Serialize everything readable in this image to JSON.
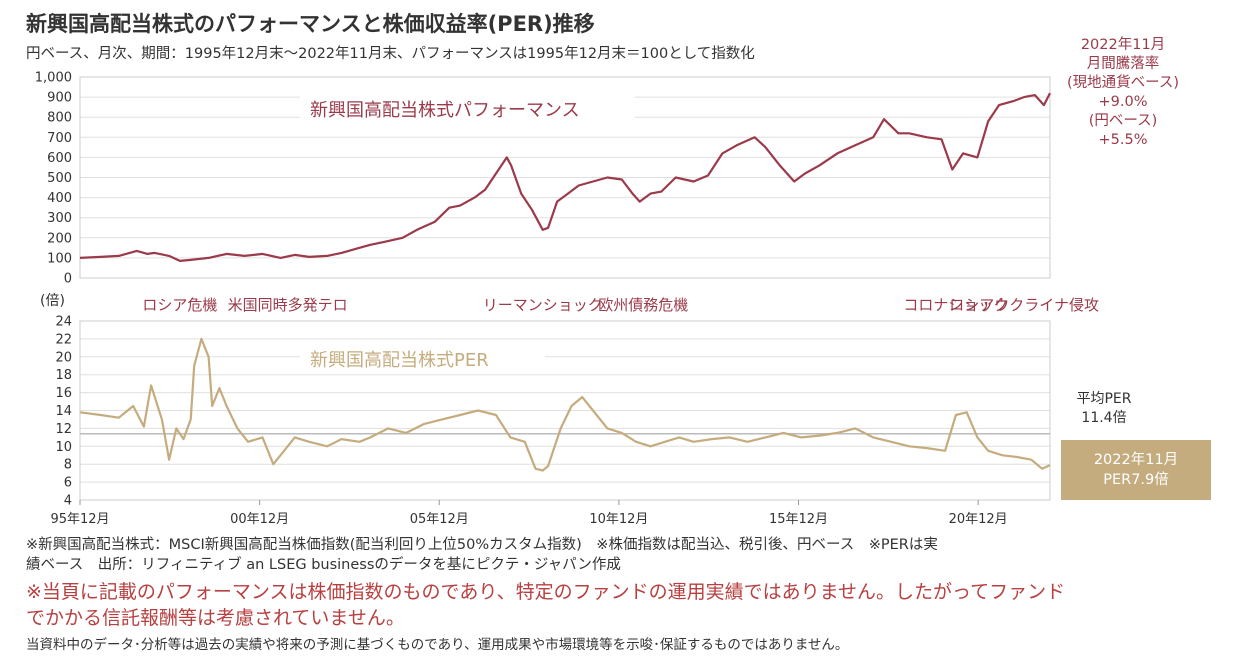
{
  "title": "新興国高配当株式のパフォーマンスと株価収益率(PER)推移",
  "subtitle": "円ベース、月次、期間：1995年12月末〜2022年11月末、パフォーマンスは1995年12月末＝100として指数化",
  "monthly_box": {
    "line1": "2022年11月",
    "line2": "月間騰落率",
    "line3": "(現地通貨ベース)",
    "line4": "+9.0%",
    "line5": "(円ベース)",
    "line6": "+5.5%"
  },
  "avg_per": {
    "line1": "平均PER",
    "line2": "11.4倍"
  },
  "per_box": {
    "line1": "2022年11月",
    "line2": "PER7.9倍"
  },
  "notes": {
    "note1": "※新興国高配当株式：MSCI新興国高配当株価指数(配当利回り上位50%カスタム指数)　※株価指数は配当込、税引後、円ベース　※PERは実",
    "note1b": "績ベース　出所：リフィニティブ an LSEG businessのデータを基にピクテ・ジャパン作成",
    "disclaimer1": "※当頁に記載のパフォーマンスは株価指数のものであり、特定のファンドの運用実績ではありません。したがってファンド",
    "disclaimer2": "でかかる信託報酬等は考慮されていません。",
    "footer": "当資料中のデータ･分析等は過去の実績や将来の予測に基づくものであり、運用成果や市場環境等を示唆･保証するものではありません。"
  },
  "colors": {
    "performance": "#9b3a4a",
    "per": "#c5ac7e",
    "avg_line": "#bbbbbb",
    "grid": "#e0e0e0"
  },
  "chart_data": [
    {
      "type": "line",
      "series": [
        {
          "name": "新興国高配当株式パフォーマンス"
        }
      ],
      "ylim": [
        0,
        1000
      ],
      "yticks": [
        "0",
        "100",
        "200",
        "300",
        "400",
        "500",
        "600",
        "700",
        "800",
        "900",
        "1,000"
      ],
      "x_start": "1995-12",
      "x_end": "2022-11",
      "x": [
        1995.92,
        1996.5,
        1997.0,
        1997.5,
        1997.8,
        1998.0,
        1998.4,
        1998.7,
        1999.0,
        1999.5,
        2000.0,
        2000.5,
        2001.0,
        2001.5,
        2001.9,
        2002.3,
        2002.8,
        2003.2,
        2003.7,
        2004.0,
        2004.4,
        2004.9,
        2005.3,
        2005.8,
        2006.2,
        2006.5,
        2006.9,
        2007.2,
        2007.5,
        2007.8,
        2007.92,
        2008.2,
        2008.5,
        2008.8,
        2008.95,
        2009.2,
        2009.5,
        2009.8,
        2010.2,
        2010.6,
        2011.0,
        2011.3,
        2011.5,
        2011.8,
        2012.1,
        2012.5,
        2013.0,
        2013.4,
        2013.8,
        2014.2,
        2014.7,
        2015.0,
        2015.4,
        2015.8,
        2016.1,
        2016.5,
        2017.0,
        2017.5,
        2018.0,
        2018.3,
        2018.7,
        2019.0,
        2019.5,
        2019.9,
        2020.2,
        2020.5,
        2020.9,
        2021.2,
        2021.5,
        2021.9,
        2022.2,
        2022.5,
        2022.75,
        2022.92
      ],
      "values": [
        100,
        105,
        110,
        135,
        120,
        125,
        110,
        85,
        90,
        100,
        120,
        110,
        120,
        100,
        115,
        105,
        110,
        125,
        150,
        165,
        180,
        200,
        240,
        280,
        350,
        360,
        400,
        440,
        520,
        600,
        560,
        420,
        340,
        240,
        250,
        380,
        420,
        460,
        480,
        500,
        490,
        420,
        380,
        420,
        430,
        500,
        480,
        510,
        620,
        660,
        700,
        650,
        560,
        480,
        520,
        560,
        620,
        660,
        700,
        790,
        720,
        720,
        700,
        690,
        540,
        620,
        600,
        780,
        860,
        880,
        900,
        910,
        860,
        920
      ]
    },
    {
      "type": "line",
      "series": [
        {
          "name": "新興国高配当株式PER"
        }
      ],
      "ylim": [
        4,
        24
      ],
      "yticks": [
        "4",
        "6",
        "8",
        "10",
        "12",
        "14",
        "16",
        "18",
        "20",
        "22",
        "24"
      ],
      "average": 11.4,
      "xticks": [
        "95年12月",
        "00年12月",
        "05年12月",
        "10年12月",
        "15年12月",
        "20年12月"
      ],
      "events": [
        "ロシア危機",
        "米国同時多発テロ",
        "リーマンショック",
        "欧州債務危機",
        "コロナショック",
        "ロシアウクライナ侵攻"
      ],
      "x": [
        1995.92,
        1996.5,
        1997.0,
        1997.4,
        1997.7,
        1997.9,
        1998.2,
        1998.4,
        1998.6,
        1998.8,
        1999.0,
        1999.1,
        1999.3,
        1999.5,
        1999.6,
        1999.8,
        2000.0,
        2000.3,
        2000.6,
        2001.0,
        2001.3,
        2001.6,
        2001.9,
        2002.3,
        2002.8,
        2003.2,
        2003.7,
        2004.0,
        2004.5,
        2005.0,
        2005.5,
        2006.0,
        2006.5,
        2007.0,
        2007.5,
        2007.9,
        2008.3,
        2008.6,
        2008.8,
        2008.95,
        2009.3,
        2009.6,
        2009.9,
        2010.3,
        2010.6,
        2011.0,
        2011.4,
        2011.8,
        2012.2,
        2012.6,
        2013.0,
        2013.5,
        2014.0,
        2014.5,
        2015.0,
        2015.5,
        2016.0,
        2016.5,
        2017.0,
        2017.5,
        2018.0,
        2018.5,
        2019.0,
        2019.5,
        2020.0,
        2020.3,
        2020.6,
        2020.9,
        2021.2,
        2021.6,
        2022.0,
        2022.4,
        2022.7,
        2022.92
      ],
      "values": [
        13.8,
        13.5,
        13.2,
        14.5,
        12.2,
        16.8,
        13.0,
        8.5,
        12.0,
        10.8,
        13.0,
        19.0,
        22.0,
        20.0,
        14.5,
        16.5,
        14.5,
        12.0,
        10.5,
        11.0,
        8.0,
        9.5,
        11.0,
        10.5,
        10.0,
        10.8,
        10.5,
        11.0,
        12.0,
        11.5,
        12.5,
        13.0,
        13.5,
        14.0,
        13.5,
        11.0,
        10.5,
        7.5,
        7.3,
        7.8,
        12.0,
        14.5,
        15.5,
        13.5,
        12.0,
        11.5,
        10.5,
        10.0,
        10.5,
        11.0,
        10.5,
        10.8,
        11.0,
        10.5,
        11.0,
        11.5,
        11.0,
        11.2,
        11.5,
        12.0,
        11.0,
        10.5,
        10.0,
        9.8,
        9.5,
        13.5,
        13.8,
        11.0,
        9.5,
        9.0,
        8.8,
        8.5,
        7.5,
        7.9
      ]
    }
  ]
}
